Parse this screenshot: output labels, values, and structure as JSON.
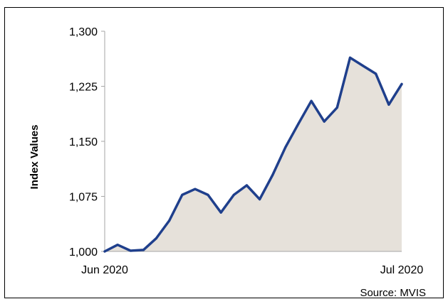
{
  "chart_data": {
    "type": "area",
    "title": "",
    "ylabel": "Index Values",
    "xlabel": "",
    "ylim": [
      1000,
      1300
    ],
    "yticks": [
      1000,
      1075,
      1150,
      1225,
      1300
    ],
    "ytick_labels": [
      "1,000",
      "1,075",
      "1,150",
      "1,225",
      "1,300"
    ],
    "xtick_labels": [
      "Jun 2020",
      "Jul 2020"
    ],
    "grid": false,
    "legend": "none",
    "source": "Source: MVIS",
    "colors": {
      "line": "#1f3f8c",
      "fill": "#e6e1da"
    },
    "series": [
      {
        "values": [
          1000,
          1009,
          1001,
          1002,
          1018,
          1042,
          1077,
          1085,
          1077,
          1053,
          1077,
          1090,
          1071,
          1104,
          1142,
          1174,
          1205,
          1177,
          1196,
          1264,
          1253,
          1242,
          1200,
          1228
        ]
      }
    ]
  }
}
